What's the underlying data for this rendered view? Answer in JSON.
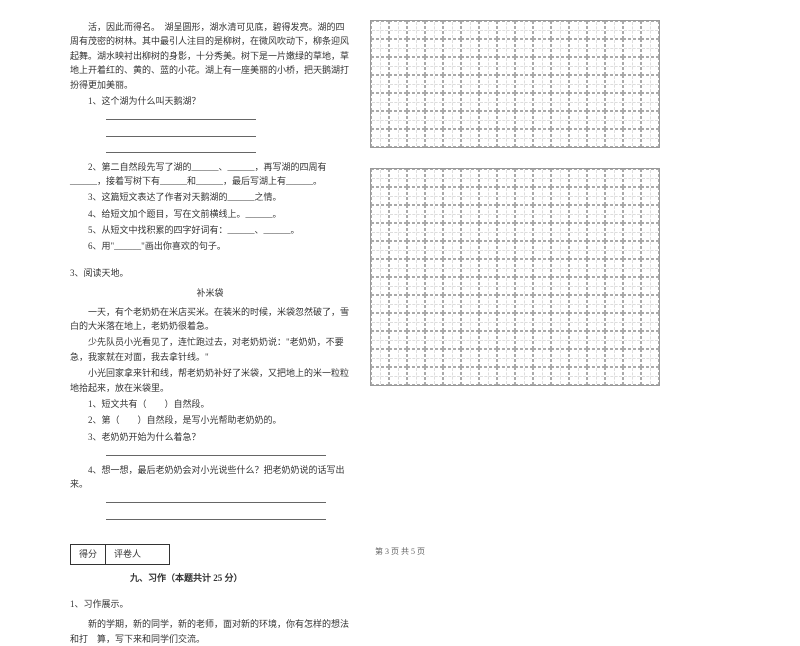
{
  "passage1": {
    "intro": "活，因此而得名。　湖呈圆形，湖水清可见底，碧得发亮。湖的四周有茂密的树林。其中最引人注目的是柳树，在微风吹动下，柳条迎风起舞。湖水映衬出柳树的身影，十分秀美。树下是一片嫩绿的草地，草地上开着红的、黄的、蓝的小花。湖上有一座美丽的小桥，把天鹅湖打扮得更加美丽。",
    "q1": "1、这个湖为什么叫天鹅湖？",
    "q2": "2、第二自然段先写了湖的______、______，再写湖的四周有______，接着写树下有______和______，最后写湖上有______。",
    "q3": "3、这篇短文表达了作者对天鹅湖的______之情。",
    "q4": "4、给短文加个题目，写在文前横线上。______。",
    "q5": "5、从短文中找积累的四字好词有：______、______。",
    "q6": "6、用\"______\"画出你喜欢的句子。"
  },
  "passage2": {
    "header": "3、阅读天地。",
    "title": "补米袋",
    "p1": "一天，有个老奶奶在米店买米。在装米的时候，米袋忽然破了，雪白的大米落在地上，老奶奶很着急。",
    "p2": "少先队员小光看见了，连忙跑过去，对老奶奶说：\"老奶奶，不要急，我家就在对面，我去拿针线。\"",
    "p3": "小光回家拿来针和线，帮老奶奶补好了米袋，又把地上的米一粒粒地拾起来，放在米袋里。",
    "q1": "1、短文共有（　　）自然段。",
    "q2": "2、第（　　）自然段，是写小光帮助老奶奶的。",
    "q3": "3、老奶奶开始为什么着急？",
    "q4": "4、想一想，最后老奶奶会对小光说些什么？把老奶奶说的话写出来。"
  },
  "section9": {
    "score_label1": "得分",
    "score_label2": "评卷人",
    "title": "九、习作（本题共计 25 分）",
    "item": "1、习作展示。",
    "prompt": "新的学期，新的同学，新的老师，面对新的环境，你有怎样的想法和打　算，写下来和同学们交流。"
  },
  "footer": "第 3 页 共 5 页",
  "grid": {
    "rows1": 7,
    "rows2": 12,
    "cols": 16
  },
  "colors": {
    "text": "#333333",
    "line": "#999999",
    "dash": "#aaaaaa"
  }
}
